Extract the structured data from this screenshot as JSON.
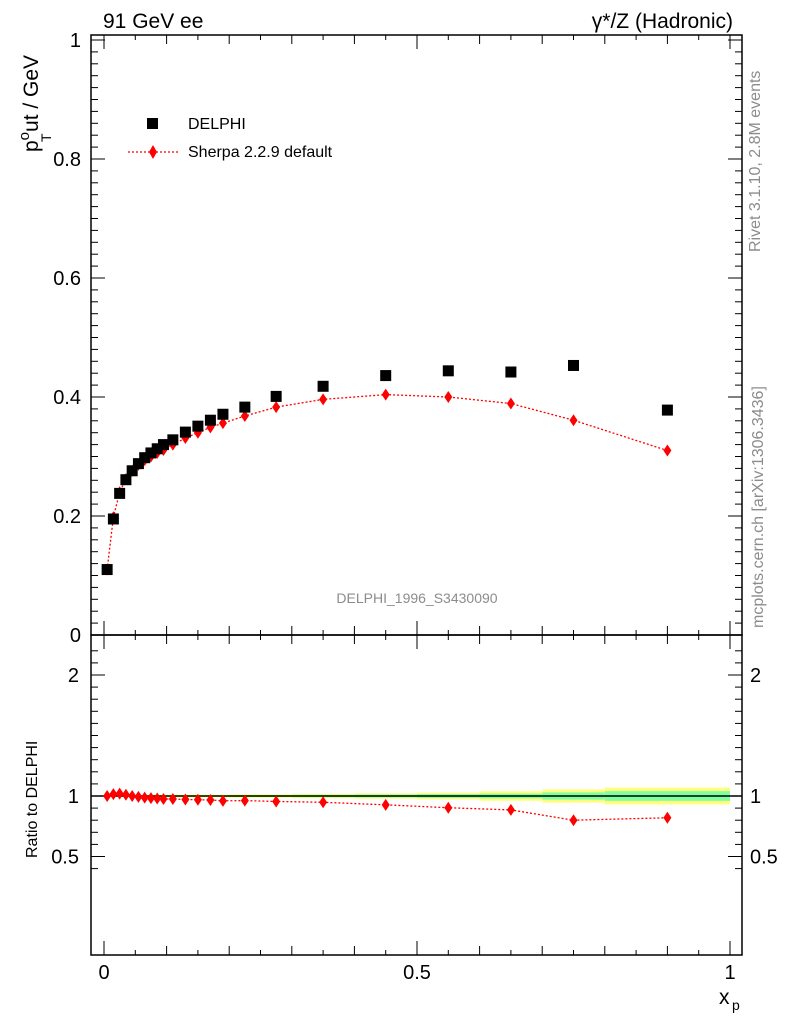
{
  "header": {
    "left": "91 GeV ee",
    "right": "γ*/Z (Hadronic)"
  },
  "side_text": {
    "rivet": "Rivet 3.1.10,  2.8M events",
    "source": "mcplots.cern.ch [arXiv:1306.3436]"
  },
  "analysis_label": "DELPHI_1996_S3430090",
  "colors": {
    "data": "#000000",
    "mc": "#ff0000",
    "band_inner": "#7fff9f",
    "band_outer": "#ffff7f"
  },
  "chart_data": [
    {
      "type": "scatter",
      "panel": "main",
      "ylabel": "p_T^out / GeV",
      "xlim": [
        0,
        1
      ],
      "ylim": [
        0,
        1
      ],
      "yticks": [
        "0",
        "0.2",
        "0.4",
        "0.6",
        "0.8",
        "1"
      ],
      "legend": {
        "position": "top-left"
      },
      "series": [
        {
          "name": "DELPHI",
          "marker": "square",
          "x": [
            0.005,
            0.015,
            0.025,
            0.035,
            0.045,
            0.055,
            0.065,
            0.075,
            0.085,
            0.095,
            0.11,
            0.13,
            0.15,
            0.17,
            0.19,
            0.225,
            0.275,
            0.35,
            0.45,
            0.55,
            0.65,
            0.75,
            0.9
          ],
          "y": [
            0.11,
            0.195,
            0.238,
            0.261,
            0.276,
            0.288,
            0.298,
            0.306,
            0.313,
            0.32,
            0.328,
            0.341,
            0.351,
            0.361,
            0.371,
            0.383,
            0.401,
            0.418,
            0.436,
            0.444,
            0.442,
            0.453,
            0.378
          ]
        },
        {
          "name": "Sherpa 2.2.9 default",
          "marker": "diamond",
          "x": [
            0.005,
            0.015,
            0.025,
            0.035,
            0.045,
            0.055,
            0.065,
            0.075,
            0.085,
            0.095,
            0.11,
            0.13,
            0.15,
            0.17,
            0.19,
            0.225,
            0.275,
            0.35,
            0.45,
            0.55,
            0.65,
            0.75,
            0.9
          ],
          "y": [
            0.11,
            0.198,
            0.24,
            0.262,
            0.276,
            0.286,
            0.294,
            0.3,
            0.306,
            0.311,
            0.32,
            0.331,
            0.34,
            0.349,
            0.356,
            0.368,
            0.383,
            0.396,
            0.404,
            0.4,
            0.389,
            0.361,
            0.31
          ]
        }
      ]
    },
    {
      "type": "line",
      "panel": "ratio",
      "xlabel": "x_p",
      "ylabel": "Ratio to DELPHI",
      "xlim": [
        0,
        1
      ],
      "ylim": [
        0.34,
        2.3
      ],
      "yticks": [
        0.5,
        1,
        2
      ],
      "xticks": [
        "0",
        "0.5",
        "1"
      ],
      "reference": 1,
      "uncertainty_bands": {
        "x_edges": [
          0.0,
          0.1,
          0.2,
          0.3,
          0.4,
          0.5,
          0.6,
          0.7,
          0.8,
          1.0
        ],
        "inner": [
          0.005,
          0.005,
          0.008,
          0.01,
          0.012,
          0.015,
          0.02,
          0.03,
          0.04
        ],
        "outer": [
          0.01,
          0.012,
          0.015,
          0.018,
          0.022,
          0.028,
          0.04,
          0.055,
          0.07
        ]
      },
      "series": [
        {
          "name": "Sherpa 2.2.9 default",
          "marker": "diamond",
          "x": [
            0.005,
            0.015,
            0.025,
            0.035,
            0.045,
            0.055,
            0.065,
            0.075,
            0.085,
            0.095,
            0.11,
            0.13,
            0.15,
            0.17,
            0.19,
            0.225,
            0.275,
            0.35,
            0.45,
            0.55,
            0.65,
            0.75,
            0.9
          ],
          "y": [
            1.0,
            1.015,
            1.02,
            1.01,
            1.0,
            0.993,
            0.987,
            0.982,
            0.979,
            0.975,
            0.975,
            0.971,
            0.969,
            0.967,
            0.96,
            0.962,
            0.955,
            0.948,
            0.927,
            0.903,
            0.885,
            0.8,
            0.82
          ]
        }
      ]
    }
  ]
}
